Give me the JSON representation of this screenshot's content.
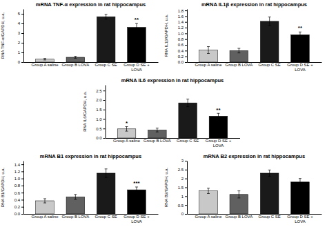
{
  "chart_data": [
    {
      "type": "bar",
      "title": "mRNA TNF-α expression in rat hippocampus",
      "ylabel": "RNA TNF-α/GAPDH, u.a.",
      "categories": [
        "Group A saline",
        "Group B LOVA",
        "Group C SE",
        "Group D SE +\nLOVA"
      ],
      "values": [
        0.3,
        0.5,
        4.7,
        3.6
      ],
      "errors": [
        0.08,
        0.1,
        0.25,
        0.4
      ],
      "colors": [
        "#c8c8c8",
        "#606060",
        "#1a1a1a",
        "#000000"
      ],
      "ylim": [
        0,
        5.5
      ],
      "yticks": [
        0,
        1,
        2,
        3,
        4,
        5
      ],
      "grid": false,
      "annotations": [
        {
          "text": "**",
          "x": "Group D SE +\nLOVA",
          "y": 4.15
        }
      ]
    },
    {
      "type": "bar",
      "title": "mRNA IL1β expression in rat hippocampus",
      "ylabel": "RNA IL1β/GAPDH, u.a.",
      "categories": [
        "Group A saline",
        "Group B LOVA",
        "Group C SE",
        "Group D SE +\nLOVA"
      ],
      "values": [
        0.42,
        0.4,
        1.42,
        0.95
      ],
      "errors": [
        0.12,
        0.08,
        0.15,
        0.1
      ],
      "colors": [
        "#c8c8c8",
        "#606060",
        "#1a1a1a",
        "#000000"
      ],
      "ylim": [
        0,
        1.85
      ],
      "yticks": [
        {
          "value": 0,
          "label": "0.0"
        },
        0.2,
        0.4,
        0.6,
        0.8,
        {
          "value": 1.0,
          "label": "1.0"
        },
        1.2,
        1.4,
        1.6,
        1.8
      ],
      "grid": false,
      "annotations": [
        {
          "text": "**",
          "x": "Group D SE +\nLOVA",
          "y": 1.1
        }
      ]
    },
    {
      "type": "bar",
      "title": "mRNA IL6 expression in rat hippocampus",
      "ylabel": "RNA IL6/GAPDH, u.a.",
      "categories": [
        "Group A saline",
        "Group B LOVA",
        "Group C SE",
        "Group D SE +\nLOVA"
      ],
      "values": [
        0.48,
        0.42,
        1.85,
        1.15
      ],
      "errors": [
        0.12,
        0.1,
        0.2,
        0.15
      ],
      "colors": [
        "#c8c8c8",
        "#606060",
        "#1a1a1a",
        "#000000"
      ],
      "ylim": [
        0,
        2.8
      ],
      "yticks": [
        {
          "value": 0,
          "label": "0.0"
        },
        0.5,
        {
          "value": 1.0,
          "label": "1.0"
        },
        1.5,
        {
          "value": 2.0,
          "label": "2.0"
        },
        2.5
      ],
      "grid": false,
      "annotations": [
        {
          "text": "*",
          "x": "Group A saline",
          "y": 0.65
        },
        {
          "text": "**",
          "x": "Group D SE +\nLOVA",
          "y": 1.35
        }
      ]
    },
    {
      "type": "bar",
      "title": "mRNA B1 expression in rat hippocampus",
      "ylabel": "RNA B1/GAPDH, u.a.",
      "categories": [
        "Group A saline",
        "Group B LOVA",
        "Group C SE",
        "Group D SE +\nLOVA"
      ],
      "values": [
        0.37,
        0.48,
        1.15,
        0.68
      ],
      "errors": [
        0.06,
        0.07,
        0.12,
        0.08
      ],
      "colors": [
        "#c8c8c8",
        "#606060",
        "#1a1a1a",
        "#000000"
      ],
      "ylim": [
        0,
        1.5
      ],
      "yticks": [
        {
          "value": 0,
          "label": "0.0"
        },
        0.2,
        0.4,
        0.6,
        0.8,
        {
          "value": 1.0,
          "label": "1.0"
        },
        1.2,
        1.4
      ],
      "grid": false,
      "annotations": [
        {
          "text": "***",
          "x": "Group D SE +\nLOVA",
          "y": 0.8
        }
      ]
    },
    {
      "type": "bar",
      "title": "mRNA B2 expression in rat hippocampus",
      "ylabel": "RNA B2/GAPDH, u.a.",
      "categories": [
        "Group A saline",
        "Group B LOVA",
        "Group C SE",
        "Group D SE +\nLOVA"
      ],
      "values": [
        1.3,
        1.1,
        2.3,
        1.8
      ],
      "errors": [
        0.15,
        0.2,
        0.18,
        0.2
      ],
      "colors": [
        "#c8c8c8",
        "#606060",
        "#1a1a1a",
        "#000000"
      ],
      "ylim": [
        0,
        3.0
      ],
      "yticks": [
        0,
        0.5,
        1,
        1.5,
        2,
        2.5,
        3
      ],
      "grid": false
    }
  ]
}
